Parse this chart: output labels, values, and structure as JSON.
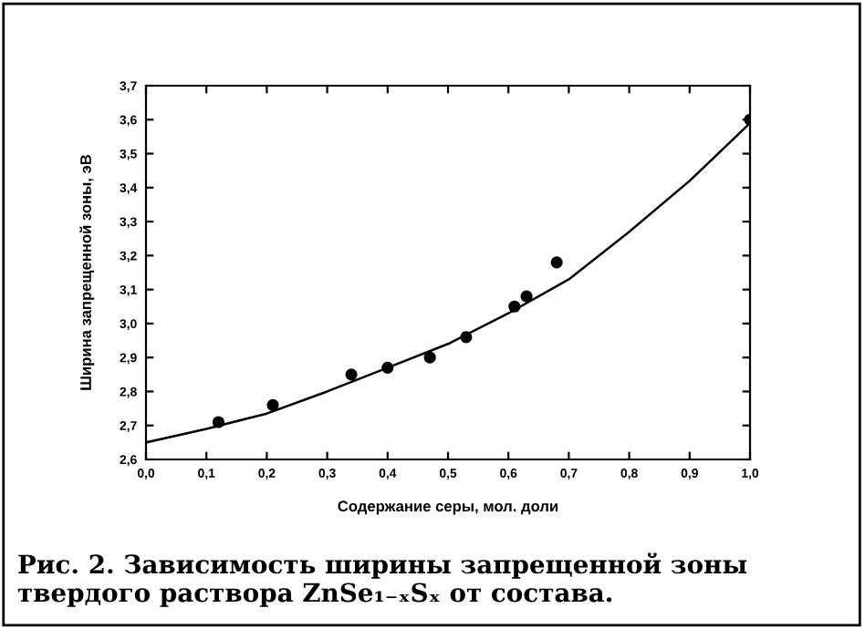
{
  "chart_data": {
    "type": "scatter",
    "xlabel": "Содержание серы, мол. доли",
    "ylabel": "Ширина запрещенной зоны, эВ",
    "annotations": [
      "Рис. 2. Зависимость ширины запрещенной зоны твердого раствора ZnSe₁₋ₓSₓ от состава."
    ],
    "series": [
      {
        "color": "#000000",
        "marker": "circle",
        "x": [
          0.12,
          0.21,
          0.34,
          0.4,
          0.47,
          0.53,
          0.61,
          0.63,
          0.68,
          1.0
        ],
        "values": [
          2.71,
          2.76,
          2.85,
          2.87,
          2.9,
          2.96,
          3.05,
          3.08,
          3.18,
          3.6
        ]
      },
      {
        "type": "line",
        "color": "#000000",
        "marker": "none",
        "x": [
          0,
          0.1,
          0.2,
          0.3,
          0.4,
          0.5,
          0.6,
          0.7,
          0.8,
          0.9,
          1.0
        ],
        "values": [
          2.65,
          2.69,
          2.735,
          2.8,
          2.87,
          2.94,
          3.03,
          3.13,
          3.27,
          3.42,
          3.59
        ]
      }
    ],
    "xlim": [
      0,
      1.0
    ],
    "ylim": [
      2.6,
      3.7
    ],
    "xticks": [
      {
        "value": 0,
        "label": "0,0"
      },
      {
        "value": 0.1,
        "label": "0,1"
      },
      {
        "value": 0.2,
        "label": "0,2"
      },
      {
        "value": 0.3,
        "label": "0,3"
      },
      {
        "value": 0.4,
        "label": "0,4"
      },
      {
        "value": 0.5,
        "label": "0,5"
      },
      {
        "value": 0.6,
        "label": "0,6"
      },
      {
        "value": 0.7,
        "label": "0,7"
      },
      {
        "value": 0.8,
        "label": "0,8"
      },
      {
        "value": 0.9,
        "label": "0,9"
      },
      {
        "value": 1.0,
        "label": "1,0"
      }
    ],
    "yticks": [
      {
        "value": 2.6,
        "label": "2,6"
      },
      {
        "value": 2.7,
        "label": "2,7"
      },
      {
        "value": 2.8,
        "label": "2,8"
      },
      {
        "value": 2.9,
        "label": "2,9"
      },
      {
        "value": 3.0,
        "label": "3,0"
      },
      {
        "value": 3.1,
        "label": "3,1"
      },
      {
        "value": 3.2,
        "label": "3,2"
      },
      {
        "value": 3.3,
        "label": "3,3"
      },
      {
        "value": 3.4,
        "label": "3,4"
      },
      {
        "value": 3.5,
        "label": "3,5"
      },
      {
        "value": 3.6,
        "label": "3,6"
      },
      {
        "value": 3.7,
        "label": "3,7"
      }
    ],
    "grid": false,
    "legend": false
  }
}
